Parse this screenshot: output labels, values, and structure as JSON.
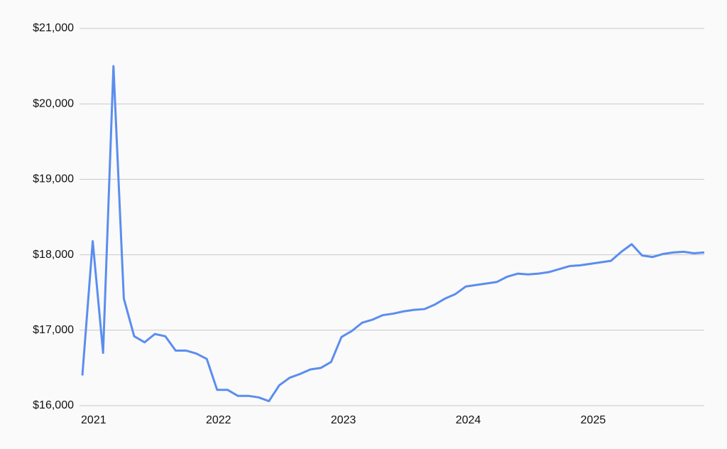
{
  "chart_data": {
    "type": "line",
    "x": [
      2020.91,
      2020.993,
      2021.076,
      2021.159,
      2021.242,
      2021.325,
      2021.408,
      2021.491,
      2021.574,
      2021.657,
      2021.74,
      2021.823,
      2021.906,
      2021.989,
      2022.072,
      2022.155,
      2022.238,
      2022.321,
      2022.404,
      2022.487,
      2022.57,
      2022.653,
      2022.736,
      2022.819,
      2022.902,
      2022.985,
      2023.068,
      2023.151,
      2023.234,
      2023.317,
      2023.4,
      2023.483,
      2023.566,
      2023.649,
      2023.732,
      2023.815,
      2023.898,
      2023.981,
      2024.064,
      2024.147,
      2024.23,
      2024.313,
      2024.396,
      2024.479,
      2024.562,
      2024.645,
      2024.728,
      2024.811,
      2024.894,
      2024.977,
      2025.06,
      2025.143,
      2025.226,
      2025.309,
      2025.392,
      2025.475,
      2025.558,
      2025.641,
      2025.724,
      2025.807,
      2025.89
    ],
    "series": [
      {
        "color": "#5b8def",
        "values": [
          16400,
          18180,
          16700,
          20500,
          17420,
          16920,
          16840,
          16950,
          16920,
          16730,
          16730,
          16690,
          16620,
          16210,
          16210,
          16130,
          16130,
          16110,
          16060,
          16270,
          16370,
          16420,
          16480,
          16500,
          16580,
          16910,
          16990,
          17100,
          17140,
          17200,
          17220,
          17250,
          17270,
          17280,
          17340,
          17420,
          17480,
          17580,
          17600,
          17620,
          17640,
          17710,
          17750,
          17740,
          17750,
          17770,
          17810,
          17850,
          17860,
          17880,
          17900,
          17920,
          18040,
          18140,
          17990,
          17970,
          18010,
          18030,
          18040,
          18020,
          18030
        ]
      }
    ],
    "xlim": [
      2020.91,
      2025.89
    ],
    "xticks": [
      2021,
      2022,
      2023,
      2024,
      2025
    ],
    "ylim": [
      16000,
      21000
    ],
    "yticks": [
      {
        "value": 16000,
        "label": "$16,000"
      },
      {
        "value": 17000,
        "label": "$17,000"
      },
      {
        "value": 18000,
        "label": "$18,000"
      },
      {
        "value": 19000,
        "label": "$19,000"
      },
      {
        "value": 20000,
        "label": "$20,000"
      },
      {
        "value": 21000,
        "label": "$21,000"
      }
    ],
    "grid": true
  }
}
